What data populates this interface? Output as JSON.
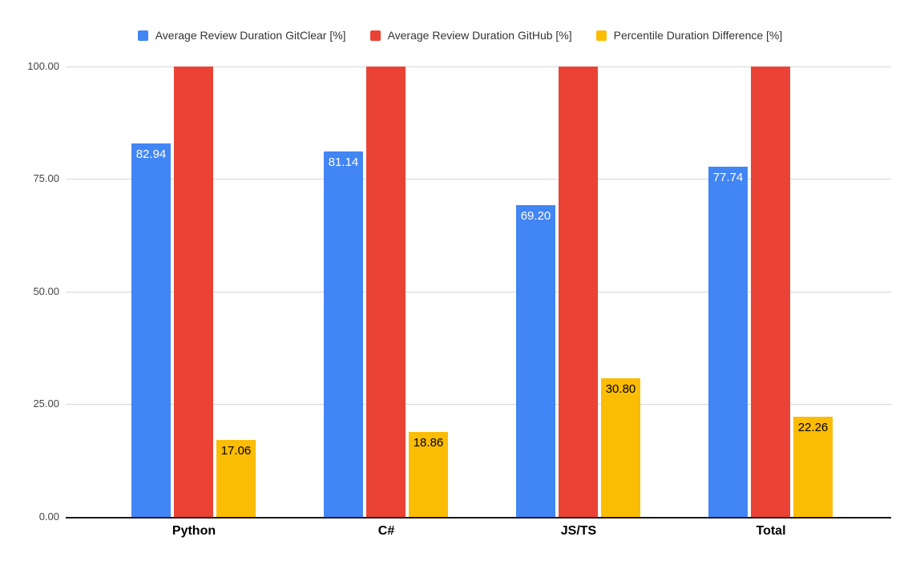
{
  "page": {
    "background": "#ffffff",
    "axis_line_color": "#1a1a1a",
    "gridline_color": "#d6d6d6"
  },
  "chart_data": {
    "type": "bar",
    "title": "",
    "categories": [
      "Python",
      "C#",
      "JS/TS",
      "Total"
    ],
    "series": [
      {
        "name": "Average Review Duration GitClear [%]",
        "short": "gitclear",
        "color": "#4285F4",
        "values": [
          82.94,
          81.14,
          69.2,
          77.74
        ],
        "show_labels": true,
        "label_color": "#ffffff"
      },
      {
        "name": "Average Review Duration GitHub [%]",
        "short": "github",
        "color": "#EA4335",
        "values": [
          100,
          100,
          100,
          100
        ],
        "show_labels": false,
        "label_color": "#ffffff"
      },
      {
        "name": "Percentile Duration Difference [%]",
        "short": "percentile-diff",
        "color": "#FBBC04",
        "values": [
          17.06,
          18.86,
          30.8,
          22.26
        ],
        "show_labels": true,
        "label_color": "#000000"
      }
    ],
    "y_ticks": [
      "100.00",
      "75.00",
      "50.00",
      "25.00",
      "0.00"
    ],
    "ylim": [
      0,
      100
    ],
    "value_label_decimals": 2,
    "grid": true,
    "legend_position": "top"
  }
}
